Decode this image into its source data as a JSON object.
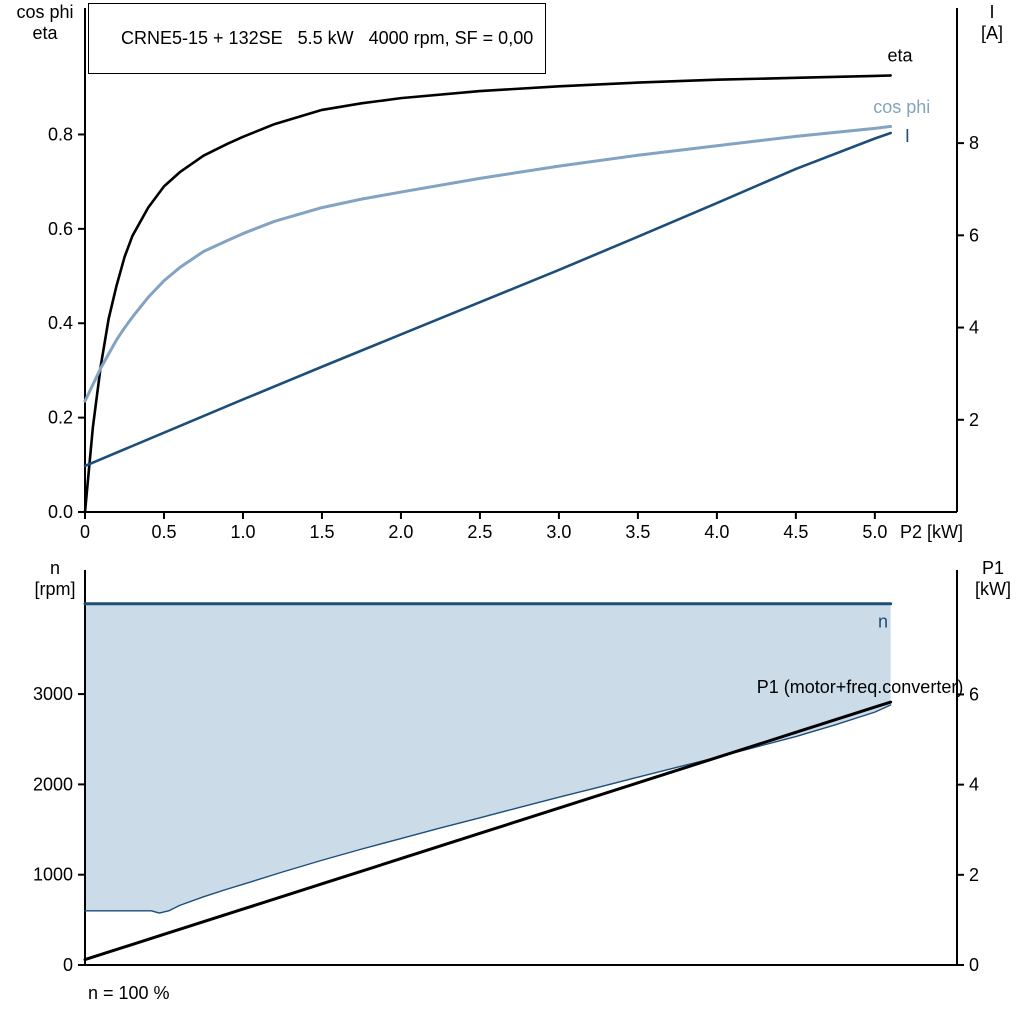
{
  "chart_data": [
    {
      "id": "motor-performance",
      "type": "line",
      "title": "CRNE5-15 + 132SE   5.5 kW   4000 rpm, SF = 0,00",
      "left_axis_label": [
        "cos phi",
        "eta"
      ],
      "right_axis_label": [
        "I",
        "[A]"
      ],
      "x_axis_label": "P2 [kW]",
      "x_range": [
        0,
        5.52
      ],
      "left_range": [
        0,
        1.068
      ],
      "right_range": [
        0,
        10.93
      ],
      "x_ticks": [
        {
          "v": 0,
          "t": "0"
        },
        {
          "v": 0.5,
          "t": "0.5"
        },
        {
          "v": 1.0,
          "t": "1.0"
        },
        {
          "v": 1.5,
          "t": "1.5"
        },
        {
          "v": 2.0,
          "t": "2.0"
        },
        {
          "v": 2.5,
          "t": "2.5"
        },
        {
          "v": 3.0,
          "t": "3.0"
        },
        {
          "v": 3.5,
          "t": "3.5"
        },
        {
          "v": 4.0,
          "t": "4.0"
        },
        {
          "v": 4.5,
          "t": "4.5"
        },
        {
          "v": 5.0,
          "t": "5.0"
        }
      ],
      "left_ticks": [
        {
          "v": 0,
          "t": "0.0"
        },
        {
          "v": 0.2,
          "t": "0.2"
        },
        {
          "v": 0.4,
          "t": "0.4"
        },
        {
          "v": 0.6,
          "t": "0.6"
        },
        {
          "v": 0.8,
          "t": "0.8"
        }
      ],
      "right_ticks": [
        {
          "v": 2,
          "t": "2"
        },
        {
          "v": 4,
          "t": "4"
        },
        {
          "v": 6,
          "t": "6"
        },
        {
          "v": 8,
          "t": "8"
        }
      ],
      "series": [
        {
          "name": "eta",
          "axis": "left",
          "color": "#000000",
          "width": 2.6,
          "x": [
            0,
            0.05,
            0.1,
            0.15,
            0.2,
            0.25,
            0.3,
            0.4,
            0.5,
            0.6,
            0.75,
            0.9,
            1.0,
            1.2,
            1.5,
            1.75,
            2.0,
            2.5,
            3.0,
            3.5,
            4.0,
            4.5,
            5.0,
            5.1
          ],
          "y": [
            0,
            0.18,
            0.31,
            0.41,
            0.48,
            0.54,
            0.585,
            0.645,
            0.69,
            0.72,
            0.755,
            0.78,
            0.795,
            0.822,
            0.852,
            0.866,
            0.877,
            0.892,
            0.902,
            0.91,
            0.916,
            0.92,
            0.924,
            0.925
          ],
          "label": {
            "text": "eta",
            "x": 5.08,
            "y": 0.955,
            "anchor": "start",
            "color": "#000000"
          }
        },
        {
          "name": "cos phi",
          "axis": "left",
          "color": "#83a3c3",
          "width": 3,
          "x": [
            0,
            0.05,
            0.1,
            0.15,
            0.2,
            0.25,
            0.3,
            0.4,
            0.5,
            0.6,
            0.75,
            0.9,
            1.0,
            1.2,
            1.5,
            1.75,
            2.0,
            2.5,
            3.0,
            3.5,
            4.0,
            4.5,
            5.0,
            5.1
          ],
          "y": [
            0.235,
            0.27,
            0.305,
            0.335,
            0.365,
            0.39,
            0.413,
            0.455,
            0.49,
            0.518,
            0.552,
            0.575,
            0.59,
            0.616,
            0.645,
            0.663,
            0.678,
            0.707,
            0.733,
            0.756,
            0.776,
            0.796,
            0.813,
            0.817
          ],
          "label": {
            "text": "cos phi",
            "x": 4.99,
            "y": 0.845,
            "anchor": "start",
            "color": "#83a3c3"
          }
        },
        {
          "name": "I",
          "axis": "right",
          "color": "#1d4e79",
          "width": 2.6,
          "x": [
            0,
            0.5,
            1.0,
            1.5,
            2.0,
            2.5,
            3.0,
            3.5,
            4.0,
            4.5,
            5.0,
            5.1
          ],
          "y": [
            1.0,
            1.72,
            2.44,
            3.15,
            3.85,
            4.55,
            5.25,
            5.97,
            6.7,
            7.44,
            8.1,
            8.22
          ],
          "label": {
            "text": "I",
            "x": 5.19,
            "y": 8.02,
            "anchor": "start",
            "color": "#1d4e79"
          }
        }
      ]
    },
    {
      "id": "speed-power",
      "type": "line",
      "title": "",
      "left_axis_label": [
        "n",
        "[rpm]"
      ],
      "right_axis_label": [
        "P1",
        "[kW]"
      ],
      "x_axis_label": "",
      "footnote": "n = 100 %",
      "x_range": [
        0,
        5.52
      ],
      "left_range": [
        0,
        4374
      ],
      "right_range": [
        0,
        8.76
      ],
      "x_ticks": [],
      "left_ticks": [
        {
          "v": 0,
          "t": "0"
        },
        {
          "v": 1000,
          "t": "1000"
        },
        {
          "v": 2000,
          "t": "2000"
        },
        {
          "v": 3000,
          "t": "3000"
        }
      ],
      "right_ticks": [
        {
          "v": 0,
          "t": "0"
        },
        {
          "v": 2,
          "t": "2"
        },
        {
          "v": 4,
          "t": "4"
        },
        {
          "v": 6,
          "t": "6"
        }
      ],
      "area": {
        "upper": 0,
        "lower": 1,
        "color": "#ccdbe8"
      },
      "series": [
        {
          "name": "n",
          "axis": "left",
          "color": "#1d4e79",
          "width": 3,
          "x": [
            0,
            5.1
          ],
          "y": [
            4000,
            4000
          ],
          "label": {
            "text": "n",
            "x": 5.02,
            "y": 3740,
            "anchor": "start",
            "color": "#1d4e79"
          }
        },
        {
          "name": "n min",
          "axis": "left",
          "color": "#1d4e79",
          "width": 1.4,
          "x": [
            0,
            0.42,
            0.47,
            0.53,
            0.6,
            0.75,
            0.9,
            1.0,
            1.25,
            1.5,
            1.75,
            2.0,
            2.25,
            2.5,
            2.75,
            3.0,
            3.25,
            3.5,
            3.75,
            4.0,
            4.25,
            4.5,
            4.75,
            5.0,
            5.1
          ],
          "y": [
            600,
            600,
            575,
            600,
            660,
            755,
            840,
            893,
            1030,
            1160,
            1283,
            1400,
            1518,
            1630,
            1745,
            1858,
            1968,
            2080,
            2190,
            2300,
            2415,
            2530,
            2660,
            2800,
            2880
          ]
        },
        {
          "name": "P1 (motor+freq.converter)",
          "axis": "right",
          "color": "#000000",
          "width": 3,
          "x": [
            0,
            0.5,
            1.0,
            1.5,
            2.0,
            2.5,
            3.0,
            3.5,
            4.0,
            4.5,
            5.0,
            5.1
          ],
          "y": [
            0.12,
            0.68,
            1.24,
            1.8,
            2.36,
            2.92,
            3.48,
            4.04,
            4.6,
            5.16,
            5.72,
            5.83
          ],
          "label": {
            "text": "P1 (motor+freq.converter)",
            "x": 5.56,
            "y": 6.03,
            "anchor": "end",
            "color": "#000000"
          }
        }
      ]
    }
  ]
}
